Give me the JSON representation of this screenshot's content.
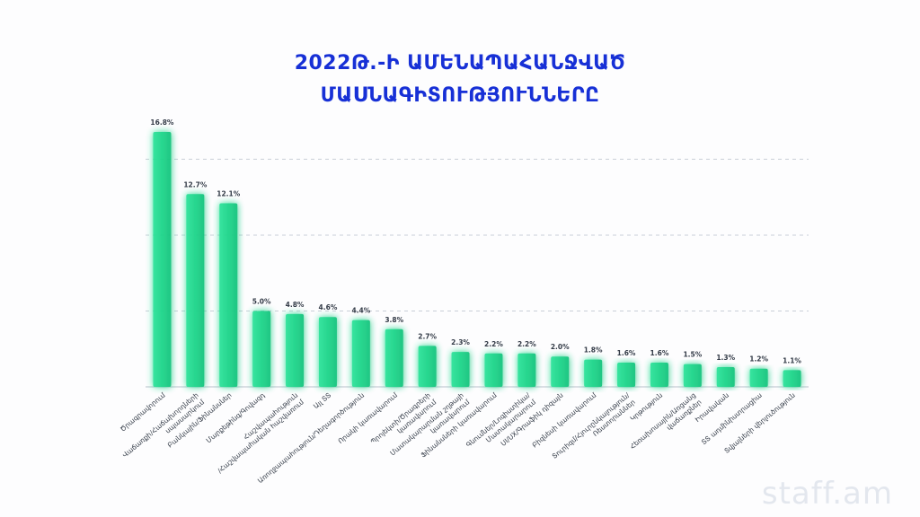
{
  "title": {
    "line1": "2022Թ.-Ի ԱՄԵՆԱՊԱՀԱՆՋՎԱԾ",
    "line2": "ՄԱՍՆԱԳԻՏՈՒԹՅՈՒՆՆԵՐԸ"
  },
  "watermark": "staff.am",
  "colors": {
    "title": "#1730d6",
    "bar": "#1dd58a",
    "grid": "#c9cfd8",
    "label": "#333b47"
  },
  "chart_data": {
    "type": "bar",
    "categories": [
      [
        "Ծրագրավորում"
      ],
      [
        "Վաճառքի/Հաճախորդների",
        "սպասարկում"
      ],
      [
        "Բանկային/Ֆինանսներ"
      ],
      [
        "Մարքեթինգ/Գովազդ"
      ],
      [
        "Հաշվապահություն",
        "/Հաշվապահական հաշվառում"
      ],
      [
        "Այլ ՏՏ"
      ],
      [
        "Առողջապահություն/Դեղագործություն"
      ],
      [
        "Որակի կառավարում"
      ],
      [
        "Պրոյեկտի/Ծրագրերի",
        "կառավարում"
      ],
      [
        "Մատակարարման շղթայի",
        "կառավարում"
      ],
      [
        "Ֆինանսների կառավարում"
      ],
      [
        "Գնումներ/Լոգիստիկա/",
        "Մատակարարում"
      ],
      [
        "UI/UX/Գրաֆիկ դիզայն"
      ],
      [
        "Բիզնեսի կառավարում"
      ],
      [
        "Տուրիզմ/Հյուրընկալություն/",
        "Ռեստորաններ"
      ],
      [
        "Կրթություն"
      ],
      [
        "Հեռախոսային/Առցանց",
        "վաճառքներ"
      ],
      [
        "Իրավական"
      ],
      [
        "ՏՏ ադմինիստրացիա"
      ],
      [
        "Տվյալների վերլուծություն"
      ]
    ],
    "values": [
      16.8,
      12.7,
      12.1,
      5.0,
      4.8,
      4.6,
      4.4,
      3.8,
      2.7,
      2.3,
      2.2,
      2.2,
      2.0,
      1.8,
      1.6,
      1.6,
      1.5,
      1.3,
      1.2,
      1.1
    ],
    "data_labels": [
      "16.8%",
      "12.7%",
      "12.1%",
      "5.0%",
      "4.8%",
      "4.6%",
      "4.4%",
      "3.8%",
      "2.7%",
      "2.3%",
      "2.2%",
      "2.2%",
      "2.0%",
      "1.8%",
      "1.6%",
      "1.6%",
      "1.5%",
      "1.3%",
      "1.2%",
      "1.1%"
    ],
    "ylim": [
      0,
      17.5
    ],
    "gridlines": [
      5,
      10,
      15
    ],
    "grid": true,
    "legend": "none"
  }
}
